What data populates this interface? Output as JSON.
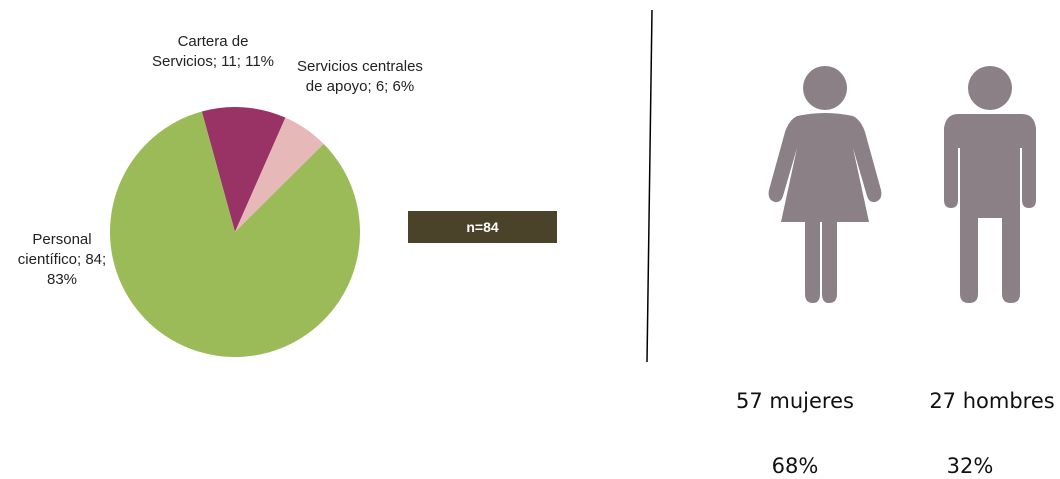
{
  "chart_data": [
    {
      "type": "pie",
      "labels": [
        "Cartera de Servicios; 11; 11%",
        "Servicios centrales de apoyo; 6; 6%",
        "Personal científico; 84; 83%"
      ],
      "values": [
        11,
        6,
        84
      ],
      "colors": [
        "#993366",
        "#e6b9b8",
        "#9bbb59"
      ],
      "annotation": "n=84"
    },
    {
      "type": "pictogram",
      "labels": [
        "57 mujeres",
        "27 hombres"
      ],
      "values": [
        68,
        32
      ],
      "value_labels": [
        "68%",
        "32%"
      ],
      "color": "#8b8086"
    }
  ]
}
